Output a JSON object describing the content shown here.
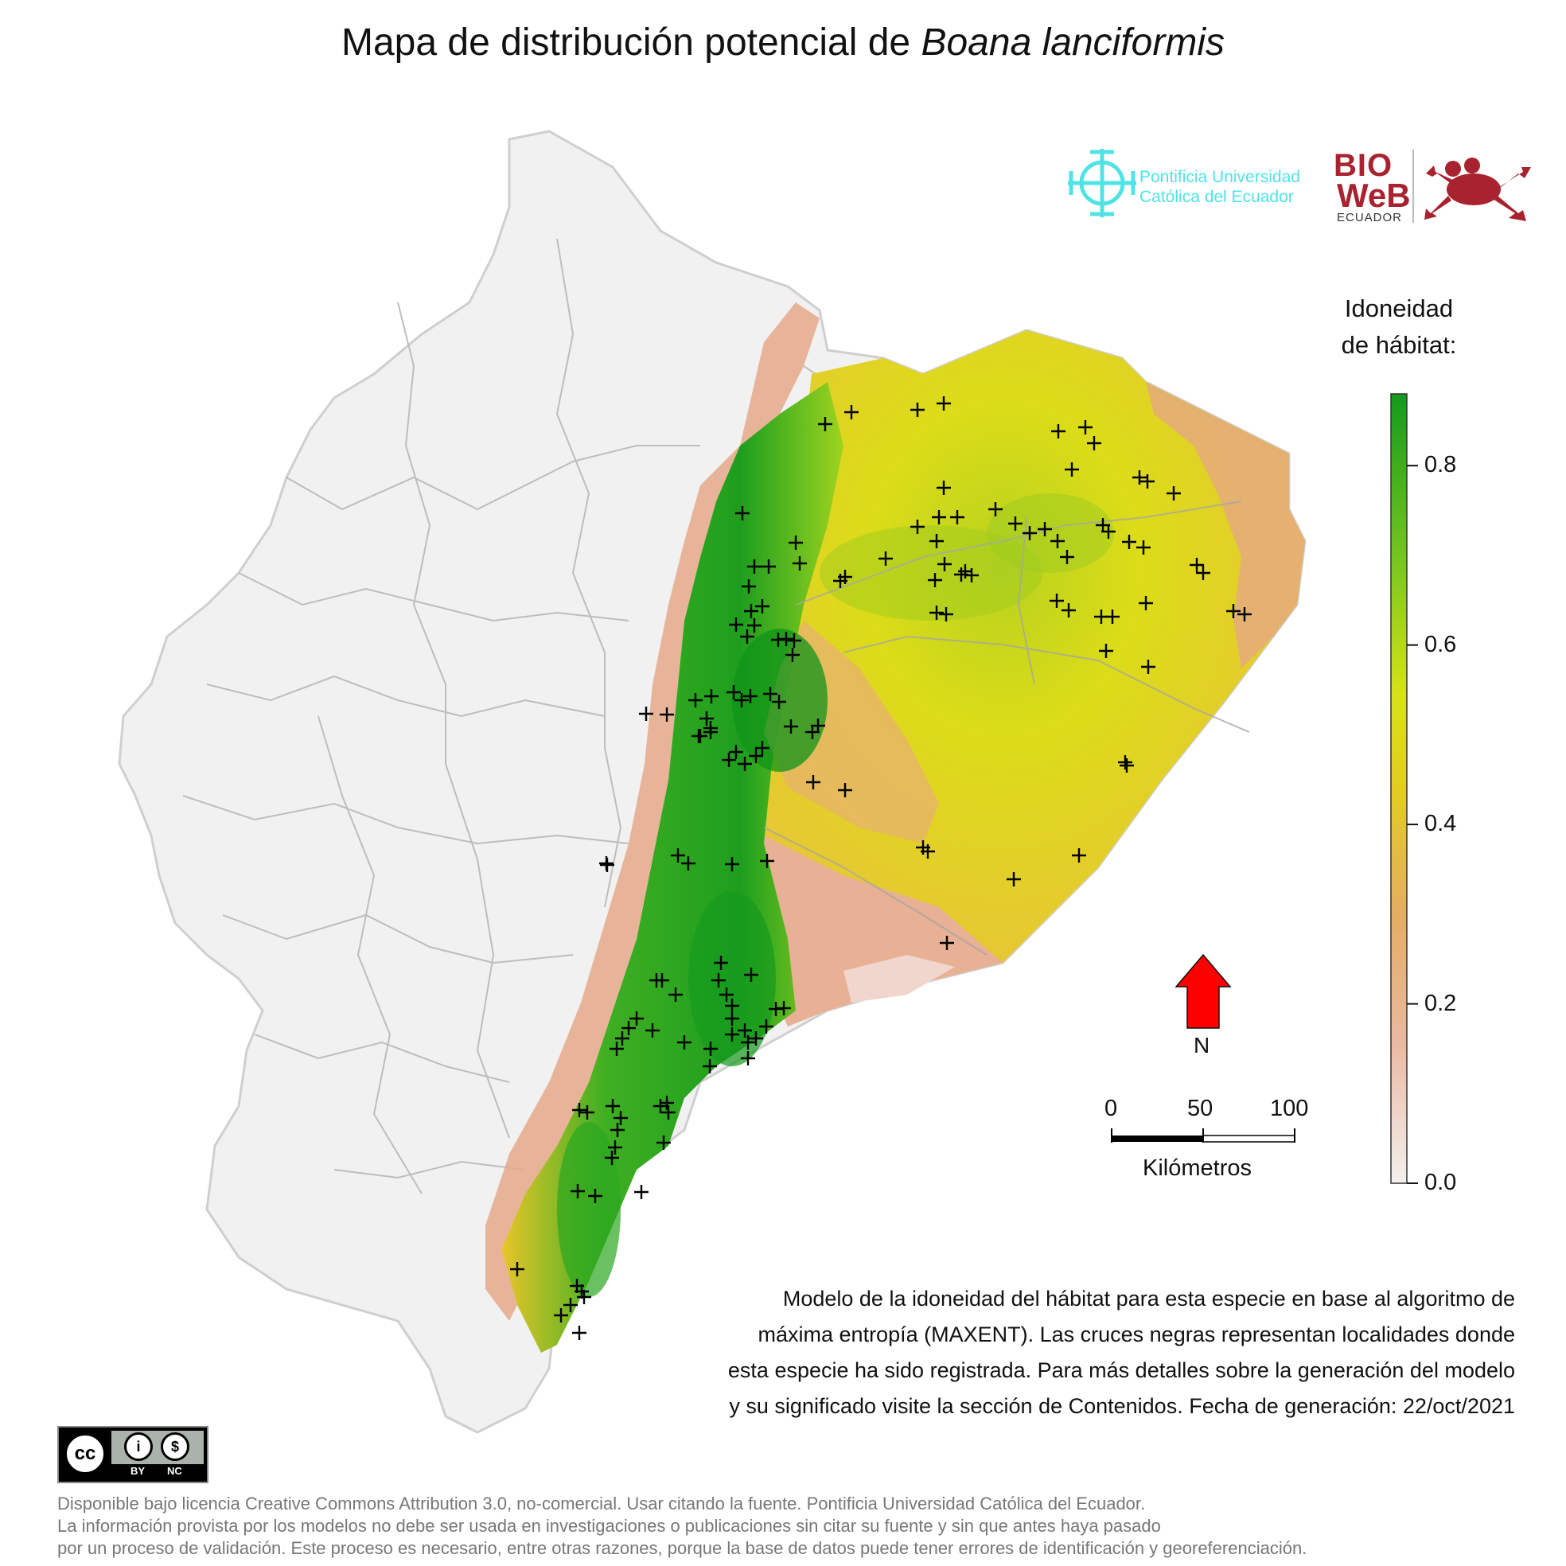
{
  "title": {
    "prefix": "Mapa de distribución potencial de ",
    "species": "Boana lanciformis"
  },
  "legend": {
    "title_line1": "Idoneidad",
    "title_line2": "de hábitat:",
    "ticks": [
      "0.0",
      "0.2",
      "0.4",
      "0.6",
      "0.8"
    ],
    "tick_values": [
      0.0,
      0.2,
      0.4,
      0.6,
      0.8
    ],
    "range": [
      0.0,
      0.88
    ],
    "colors": [
      "#f2f2f2",
      "#e8aa8a",
      "#e2b83c",
      "#e5e21a",
      "#8ed21c",
      "#1e9e1e"
    ]
  },
  "scale_bar": {
    "labels": [
      "0",
      "50",
      "100"
    ],
    "unit": "Kilómetros"
  },
  "north_arrow": {
    "label": "N",
    "color": "#ff0000"
  },
  "logos": {
    "puce_line1": "Pontificia Universidad",
    "puce_line2": "Católica del Ecuador",
    "bioweb_bio": "BIO",
    "bioweb_web": "WeB",
    "bioweb_country": "ECUADOR",
    "puce_color": "#4fe3e6",
    "bioweb_color": "#a8232f"
  },
  "description": {
    "line1": "Modelo de la idoneidad del hábitat para esta especie en base al algoritmo de",
    "line2": "máxima entropía (MAXENT). Las cruces negras representan localidades donde",
    "line3": "esta especie ha sido registrada. Para más detalles sobre la generación del modelo",
    "line4": "y su significado visite la sección de Contenidos. Fecha de generación: 22/oct/2021"
  },
  "license": {
    "badge_by": "BY",
    "badge_nc": "NC",
    "line1": "Disponible bajo licencia Creative Commons Attribution 3.0, no-comercial. Usar citando la fuente. Pontificia Universidad Católica del Ecuador.",
    "line2": "La información provista por los modelos no debe ser usada en investigaciones o publicaciones sin citar su fuente y sin que antes haya pasado",
    "line3": "por un proceso de validación. Este proceso es necesario, entre otras razones, porque la base de datos puede tener errores de identificación y georeferenciación."
  }
}
